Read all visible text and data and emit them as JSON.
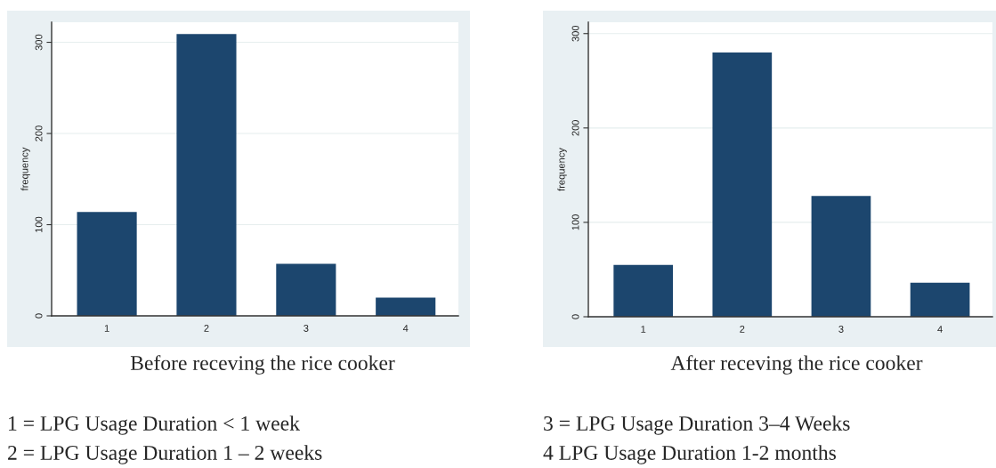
{
  "chart_data": [
    {
      "type": "bar",
      "xlabel": "Before receving the rice cooker",
      "ylabel": "frequency",
      "categories": [
        "1",
        "2",
        "3",
        "4"
      ],
      "values": [
        114,
        309,
        57,
        20
      ],
      "color": "#1c466e",
      "ylim": [
        0,
        322
      ],
      "yticks": [
        0,
        100,
        200,
        300
      ],
      "grid": "y",
      "annotations": [
        "1 = LPG Usage Duration < 1 week",
        "2 = LPG Usage Duration 1 – 2 weeks"
      ]
    },
    {
      "type": "bar",
      "xlabel": "After receving the rice cooker",
      "ylabel": "frequency",
      "categories": [
        "1",
        "2",
        "3",
        "4"
      ],
      "values": [
        55,
        280,
        128,
        36
      ],
      "color": "#1c466e",
      "ylim": [
        0,
        312
      ],
      "yticks": [
        0,
        100,
        200,
        300
      ],
      "grid": "y",
      "annotations": [
        "3 = LPG Usage Duration 3–4 Weeks",
        "4 LPG Usage Duration 1-2 months"
      ]
    }
  ]
}
